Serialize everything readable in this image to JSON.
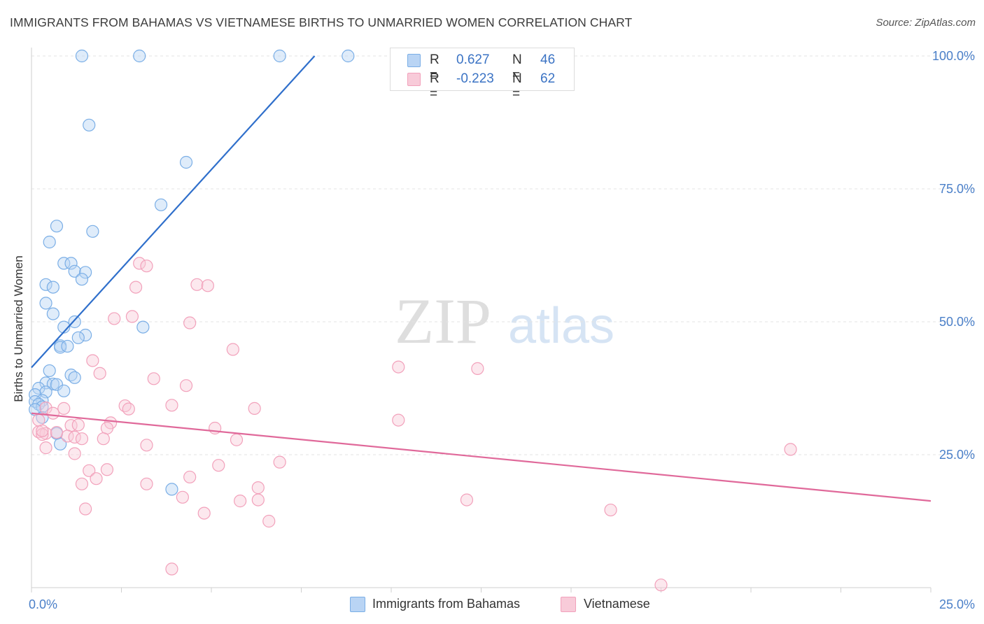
{
  "header": {
    "title": "IMMIGRANTS FROM BAHAMAS VS VIETNAMESE BIRTHS TO UNMARRIED WOMEN CORRELATION CHART",
    "source": "Source: ZipAtlas.com"
  },
  "watermark": {
    "zip": "ZIP",
    "atlas": "atlas"
  },
  "legend_top": {
    "rows": [
      {
        "r_label": "R =",
        "r_value": "0.627",
        "n_label": "N =",
        "n_value": "46"
      },
      {
        "r_label": "R =",
        "r_value": "-0.223",
        "n_label": "N =",
        "n_value": "62"
      }
    ]
  },
  "legend_bottom": {
    "items": [
      {
        "label": "Immigrants from Bahamas"
      },
      {
        "label": "Vietnamese"
      }
    ]
  },
  "chart_data": {
    "type": "scatter",
    "xlabel": "",
    "ylabel": "Births to Unmarried Women",
    "xlim": [
      0,
      25
    ],
    "ylim": [
      0,
      105
    ],
    "x_tick_labels": [
      {
        "value": 0,
        "label": "0.0%"
      },
      {
        "value": 25,
        "label": "25.0%"
      }
    ],
    "y_tick_labels": [
      {
        "value": 25,
        "label": "25.0%"
      },
      {
        "value": 50,
        "label": "50.0%"
      },
      {
        "value": 75,
        "label": "75.0%"
      },
      {
        "value": 100,
        "label": "100.0%"
      }
    ],
    "grid": "horizontal dashed",
    "legend_placement": "top-center and bottom-center",
    "series": [
      {
        "name": "Immigrants from Bahamas",
        "color": "#7aaee6",
        "line_color": "#2f6fcb",
        "trend": {
          "x": [
            0,
            7.87
          ],
          "y": [
            41.4,
            100
          ]
        },
        "points": [
          [
            1.4,
            100
          ],
          [
            3.0,
            100
          ],
          [
            6.9,
            100
          ],
          [
            8.8,
            100
          ],
          [
            1.6,
            87
          ],
          [
            4.3,
            80
          ],
          [
            3.6,
            72
          ],
          [
            0.7,
            68
          ],
          [
            1.7,
            67
          ],
          [
            0.5,
            65
          ],
          [
            0.9,
            61
          ],
          [
            1.1,
            61
          ],
          [
            1.2,
            59.5
          ],
          [
            1.5,
            59.3
          ],
          [
            1.4,
            58
          ],
          [
            0.4,
            57
          ],
          [
            0.6,
            56.5
          ],
          [
            0.4,
            53.5
          ],
          [
            0.6,
            51.5
          ],
          [
            1.2,
            50
          ],
          [
            0.9,
            49
          ],
          [
            3.1,
            49
          ],
          [
            1.5,
            47.5
          ],
          [
            1.3,
            47
          ],
          [
            0.8,
            45.5
          ],
          [
            0.8,
            45.2
          ],
          [
            1.0,
            45.4
          ],
          [
            0.5,
            40.8
          ],
          [
            1.1,
            40
          ],
          [
            1.2,
            39.5
          ],
          [
            0.4,
            38.5
          ],
          [
            0.6,
            38.3
          ],
          [
            0.7,
            38.2
          ],
          [
            0.2,
            37.5
          ],
          [
            0.4,
            36.8
          ],
          [
            0.9,
            37
          ],
          [
            0.1,
            36.3
          ],
          [
            0.3,
            35.2
          ],
          [
            0.1,
            35
          ],
          [
            0.2,
            34.5
          ],
          [
            0.3,
            34
          ],
          [
            0.1,
            33.5
          ],
          [
            0.3,
            32
          ],
          [
            0.7,
            29
          ],
          [
            0.8,
            27
          ],
          [
            3.9,
            18.5
          ]
        ]
      },
      {
        "name": "Vietnamese",
        "color": "#f2a1bb",
        "line_color": "#e0699a",
        "trend": {
          "x": [
            0,
            25
          ],
          "y": [
            32.8,
            16.3
          ]
        },
        "points": [
          [
            3.0,
            61
          ],
          [
            3.2,
            60.5
          ],
          [
            4.6,
            57
          ],
          [
            4.9,
            56.8
          ],
          [
            2.9,
            56.5
          ],
          [
            2.3,
            50.6
          ],
          [
            2.8,
            51
          ],
          [
            4.4,
            49.8
          ],
          [
            5.6,
            44.8
          ],
          [
            10.2,
            41.5
          ],
          [
            12.4,
            41.2
          ],
          [
            1.7,
            42.7
          ],
          [
            1.9,
            40.3
          ],
          [
            3.4,
            39.3
          ],
          [
            4.3,
            38
          ],
          [
            2.6,
            34.2
          ],
          [
            2.7,
            33.6
          ],
          [
            3.9,
            34.3
          ],
          [
            6.2,
            33.7
          ],
          [
            0.9,
            33.7
          ],
          [
            0.4,
            33.8
          ],
          [
            0.6,
            32.8
          ],
          [
            0.2,
            31.5
          ],
          [
            1.1,
            30.5
          ],
          [
            1.3,
            30.6
          ],
          [
            2.2,
            31
          ],
          [
            2.1,
            30
          ],
          [
            10.2,
            31.5
          ],
          [
            5.1,
            30
          ],
          [
            0.2,
            29.3
          ],
          [
            0.4,
            29
          ],
          [
            0.7,
            29.2
          ],
          [
            0.3,
            28.8
          ],
          [
            1.0,
            28.5
          ],
          [
            1.2,
            28.3
          ],
          [
            1.4,
            28
          ],
          [
            2.0,
            28
          ],
          [
            5.7,
            27.8
          ],
          [
            3.2,
            26.8
          ],
          [
            0.4,
            26.3
          ],
          [
            1.2,
            25.2
          ],
          [
            21.1,
            26
          ],
          [
            6.9,
            23.6
          ],
          [
            5.2,
            23
          ],
          [
            2.1,
            22.2
          ],
          [
            1.6,
            22
          ],
          [
            1.8,
            20.5
          ],
          [
            4.4,
            20.8
          ],
          [
            1.4,
            19.5
          ],
          [
            3.2,
            19.5
          ],
          [
            6.3,
            18.8
          ],
          [
            6.3,
            16.5
          ],
          [
            5.8,
            16.3
          ],
          [
            12.1,
            16.5
          ],
          [
            4.2,
            17
          ],
          [
            1.5,
            14.8
          ],
          [
            16.1,
            14.6
          ],
          [
            4.8,
            14
          ],
          [
            6.6,
            12.5
          ],
          [
            3.9,
            3.5
          ],
          [
            17.5,
            0.5
          ],
          [
            0.3,
            29.5
          ]
        ]
      }
    ]
  }
}
